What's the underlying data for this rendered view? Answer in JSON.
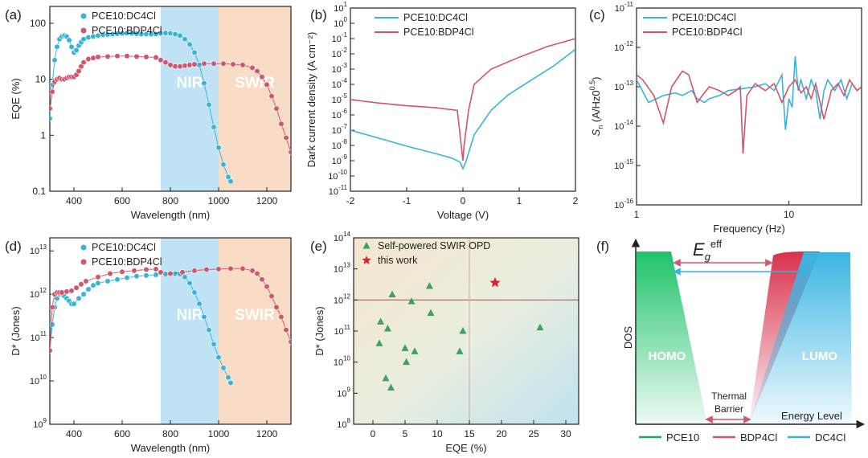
{
  "colors": {
    "dc4cl": "#3ab3d9",
    "bdp4cl": "#d0566d",
    "pce10": "#22a85a",
    "scatter": "#3fa25a",
    "star": "#d8232a",
    "nir_band": "#bfe3f4",
    "swir_band": "#f9dcc5"
  },
  "figure": {
    "panels": [
      {
        "id": "a",
        "label": "(a)",
        "type": "line",
        "yscale": "log",
        "xlabel": "Wavelength (nm)",
        "ylabel": "EQE (%)",
        "xlim": [
          300,
          1300
        ],
        "ylim": [
          0.1,
          200
        ],
        "xticks": [
          400,
          600,
          800,
          1000,
          1200
        ],
        "yticks": [
          {
            "v": 0.1,
            "t": "0.1"
          },
          {
            "v": 1,
            "t": "1"
          },
          {
            "v": 10,
            "t": "10"
          },
          {
            "v": 100,
            "t": "100"
          }
        ],
        "bands": [
          {
            "x0": 760,
            "x1": 1000,
            "label": "NIR",
            "color": "nir_band"
          },
          {
            "x0": 1000,
            "x1": 1300,
            "label": "SWIR",
            "color": "swir_band"
          }
        ],
        "legend": [
          "PCE10:DC4Cl",
          "PCE10:BDP4Cl"
        ],
        "series": [
          {
            "name": "PCE10:DC4Cl",
            "color": "dc4cl",
            "marker": "dot",
            "x": [
              300,
              310,
              320,
              330,
              340,
              350,
              360,
              370,
              380,
              390,
              400,
              410,
              420,
              430,
              440,
              460,
              480,
              500,
              520,
              540,
              560,
              580,
              600,
              620,
              640,
              660,
              680,
              700,
              720,
              740,
              760,
              780,
              800,
              820,
              840,
              860,
              880,
              900,
              920,
              940,
              960,
              980,
              1000,
              1020,
              1040,
              1050
            ],
            "y": [
              2,
              8,
              22,
              38,
              52,
              58,
              60,
              58,
              50,
              38,
              30,
              33,
              40,
              46,
              52,
              56,
              58,
              60,
              62,
              63,
              64,
              65,
              66,
              67,
              66,
              65,
              64,
              64,
              64,
              64,
              66,
              67,
              66,
              64,
              60,
              52,
              42,
              30,
              18,
              8.5,
              3.5,
              1.4,
              0.6,
              0.3,
              0.18,
              0.15
            ]
          },
          {
            "name": "PCE10:BDP4Cl",
            "color": "bdp4cl",
            "marker": "dot",
            "x": [
              300,
              310,
              320,
              330,
              340,
              350,
              360,
              370,
              380,
              390,
              400,
              410,
              420,
              430,
              440,
              460,
              480,
              500,
              540,
              580,
              620,
              660,
              700,
              740,
              760,
              780,
              800,
              820,
              840,
              860,
              880,
              900,
              940,
              980,
              1020,
              1060,
              1100,
              1140,
              1160,
              1180,
              1200,
              1220,
              1240,
              1260,
              1280,
              1300
            ],
            "y": [
              3,
              6,
              9,
              10,
              10.5,
              10,
              10,
              10.5,
              11,
              11,
              11,
              12,
              14,
              17,
              20,
              23,
              24,
              25,
              25.5,
              26,
              26,
              25.5,
              25,
              24.5,
              22,
              20,
              18,
              17,
              17,
              17.5,
              18,
              18.5,
              19,
              19,
              19,
              18.5,
              18,
              16,
              14,
              11,
              8,
              5,
              3,
              1.6,
              0.9,
              0.5
            ]
          }
        ]
      },
      {
        "id": "b",
        "label": "(b)",
        "type": "line",
        "yscale": "log",
        "xlabel": "Voltage (V)",
        "ylabel": "Dark current density (A cm⁻²)",
        "xlim": [
          -2,
          2
        ],
        "ylim": [
          1e-11,
          10
        ],
        "xticks": [
          -2,
          -1,
          0,
          1,
          2
        ],
        "yticks_exp": [
          -11,
          -10,
          -9,
          -8,
          -7,
          -6,
          -5,
          -4,
          -3,
          -2,
          -1,
          0,
          1
        ],
        "legend": [
          "PCE10:DC4Cl",
          "PCE10:BDP4Cl"
        ],
        "series": [
          {
            "name": "PCE10:DC4Cl",
            "color": "dc4cl",
            "marker": "none",
            "x": [
              -2,
              -1.5,
              -1,
              -0.5,
              -0.2,
              -0.05,
              0,
              0.05,
              0.2,
              0.5,
              0.8,
              1.0,
              1.3,
              1.6,
              2.0
            ],
            "y": [
              1e-07,
              3e-08,
              9e-09,
              3e-09,
              1.5e-09,
              8e-10,
              3e-10,
              8e-10,
              5e-08,
              2e-06,
              2e-05,
              6e-05,
              0.0003,
              0.0015,
              0.02
            ]
          },
          {
            "name": "PCE10:BDP4Cl",
            "color": "bdp4cl",
            "marker": "none",
            "x": [
              -2,
              -1.5,
              -1,
              -0.5,
              -0.1,
              0,
              0.02,
              0.1,
              0.2,
              0.5,
              1.0,
              1.5,
              2.0
            ],
            "y": [
              1e-05,
              6e-06,
              4e-06,
              3e-06,
              2e-06,
              1e-09,
              1e-08,
              2e-06,
              0.0001,
              0.001,
              0.006,
              0.03,
              0.1
            ]
          }
        ]
      },
      {
        "id": "c",
        "label": "(c)",
        "type": "line",
        "yscale": "log",
        "xscale": "log",
        "xlabel": "Frequency (Hz)",
        "ylabel": "Sn (A/Hz0.5)",
        "xlim": [
          1,
          30
        ],
        "ylim": [
          1e-16,
          1e-11
        ],
        "xticks": [
          {
            "v": 1,
            "t": "1"
          },
          {
            "v": 10,
            "t": "10"
          }
        ],
        "yticks_exp": [
          -16,
          -15,
          -14,
          -13,
          -12,
          -11
        ],
        "legend": [
          "PCE10:DC4Cl",
          "PCE10:BDP4Cl"
        ],
        "series": [
          {
            "name": "PCE10:DC4Cl",
            "color": "dc4cl",
            "marker": "none",
            "x": [
              1,
              1.2,
              1.5,
              1.8,
              2,
              2.3,
              2.5,
              2.8,
              3,
              3.5,
              4,
              5,
              6,
              7,
              8,
              9,
              9.5,
              10,
              10.5,
              11,
              11.5,
              12,
              13,
              14,
              15,
              16,
              17,
              18,
              20,
              22,
              24,
              26,
              28,
              30
            ],
            "y": [
              1.5e-13,
              4e-14,
              6e-14,
              7e-14,
              6e-14,
              8e-14,
              5e-14,
              4e-14,
              5e-14,
              6e-14,
              8e-14,
              9e-14,
              1e-13,
              1.2e-13,
              8e-14,
              2e-13,
              8e-15,
              5e-14,
              3e-14,
              6e-13,
              8e-14,
              1.5e-13,
              5e-14,
              1.5e-13,
              8e-14,
              1.5e-14,
              8e-14,
              1.5e-13,
              8e-14,
              1.5e-13,
              5e-14,
              1.2e-13,
              8e-14,
              1e-13
            ]
          },
          {
            "name": "PCE10:BDP4Cl",
            "color": "bdp4cl",
            "marker": "none",
            "x": [
              1,
              1.1,
              1.3,
              1.5,
              1.7,
              2,
              2.2,
              2.5,
              3,
              3.5,
              4,
              4.5,
              4.8,
              5,
              5.3,
              6,
              7,
              8,
              9,
              10,
              11,
              12,
              13,
              14,
              15,
              17,
              19,
              21,
              23,
              25,
              28,
              30
            ],
            "y": [
              2e-13,
              1.5e-13,
              6e-14,
              1.2e-14,
              1e-13,
              2.5e-13,
              2e-13,
              4e-14,
              1e-13,
              8e-14,
              6e-14,
              8e-14,
              1e-13,
              2e-15,
              6e-14,
              1.2e-13,
              8e-14,
              1.2e-13,
              4e-14,
              1e-13,
              1.5e-13,
              7e-14,
              1e-13,
              5e-14,
              1.2e-13,
              1.5e-14,
              8e-14,
              1.2e-13,
              6e-14,
              1.5e-13,
              8e-14,
              1e-13
            ]
          }
        ]
      },
      {
        "id": "d",
        "label": "(d)",
        "type": "line",
        "yscale": "log",
        "xlabel": "Wavelength (nm)",
        "ylabel": "D* (Jones)",
        "xlim": [
          300,
          1300
        ],
        "ylim": [
          1000000000.0,
          20000000000000.0
        ],
        "xticks": [
          400,
          600,
          800,
          1000,
          1200
        ],
        "yticks_exp": [
          9,
          10,
          11,
          12,
          13
        ],
        "bands": [
          {
            "x0": 760,
            "x1": 1000,
            "label": "NIR",
            "color": "nir_band"
          },
          {
            "x0": 1000,
            "x1": 1300,
            "label": "SWIR",
            "color": "swir_band"
          }
        ],
        "legend": [
          "PCE10:DC4Cl",
          "PCE10:BDP4Cl"
        ],
        "series": [
          {
            "name": "PCE10:DC4Cl",
            "color": "dc4cl",
            "marker": "dot",
            "x": [
              300,
              310,
              320,
              330,
              340,
              350,
              360,
              370,
              380,
              390,
              400,
              420,
              440,
              460,
              480,
              500,
              540,
              580,
              620,
              660,
              700,
              740,
              780,
              820,
              840,
              860,
              880,
              900,
              920,
              940,
              960,
              980,
              1000,
              1020,
              1040,
              1050
            ],
            "y": [
              50000000000.0,
              200000000000.0,
              500000000000.0,
              800000000000.0,
              1000000000000.0,
              1000000000000.0,
              900000000000.0,
              800000000000.0,
              700000000000.0,
              600000000000.0,
              600000000000.0,
              800000000000.0,
              1000000000000.0,
              1300000000000.0,
              1600000000000.0,
              1800000000000.0,
              2000000000000.0,
              2200000000000.0,
              2400000000000.0,
              2600000000000.0,
              2700000000000.0,
              2800000000000.0,
              2900000000000.0,
              3000000000000.0,
              2900000000000.0,
              2500000000000.0,
              1800000000000.0,
              1100000000000.0,
              600000000000.0,
              300000000000.0,
              150000000000.0,
              70000000000.0,
              35000000000.0,
              20000000000.0,
              12000000000.0,
              9000000000.0
            ]
          },
          {
            "name": "PCE10:BDP4Cl",
            "color": "bdp4cl",
            "marker": "dot",
            "x": [
              300,
              310,
              320,
              330,
              340,
              350,
              370,
              390,
              410,
              430,
              450,
              500,
              550,
              600,
              650,
              700,
              740,
              760,
              800,
              850,
              900,
              950,
              1000,
              1050,
              1100,
              1140,
              1160,
              1180,
              1200,
              1220,
              1240,
              1260,
              1280,
              1300
            ],
            "y": [
              50000000000.0,
              500000000000.0,
              1000000000000.0,
              1100000000000.0,
              1100000000000.0,
              1100000000000.0,
              1150000000000.0,
              1200000000000.0,
              1400000000000.0,
              1700000000000.0,
              2000000000000.0,
              2500000000000.0,
              3000000000000.0,
              3300000000000.0,
              3500000000000.0,
              3700000000000.0,
              3800000000000.0,
              3200000000000.0,
              3000000000000.0,
              3200000000000.0,
              3500000000000.0,
              3700000000000.0,
              3800000000000.0,
              3900000000000.0,
              3900000000000.0,
              3500000000000.0,
              3000000000000.0,
              2200000000000.0,
              1500000000000.0,
              900000000000.0,
              500000000000.0,
              300000000000.0,
              150000000000.0,
              80000000000.0
            ]
          }
        ]
      },
      {
        "id": "e",
        "label": "(e)",
        "type": "scatter",
        "yscale": "log",
        "xlabel": "EQE (%)",
        "ylabel": "D* (Jones)",
        "xlim": [
          -3,
          32
        ],
        "ylim": [
          100000000.0,
          100000000000000.0
        ],
        "xticks": [
          0,
          5,
          10,
          15,
          20,
          25,
          30
        ],
        "yticks_exp": [
          8,
          9,
          10,
          11,
          12,
          13,
          14
        ],
        "hline": 1000000000000.0,
        "vline": 15,
        "legend": [
          "Self-powered SWIR OPD",
          "this work"
        ],
        "series": [
          {
            "name": "Self-powered SWIR OPD",
            "color": "scatter",
            "marker": "triangle",
            "x": [
              1,
              1.2,
              2,
              2.3,
              2.8,
              3,
              5,
              5.2,
              6,
              6.5,
              8.8,
              9,
              13.5,
              14,
              26
            ],
            "y": [
              40000000000.0,
              200000000000.0,
              3000000000.0,
              120000000000.0,
              1500000000.0,
              1500000000000.0,
              28000000000.0,
              10000000000.0,
              900000000000.0,
              22000000000.0,
              2800000000000.0,
              380000000000.0,
              22000000000.0,
              100000000000.0,
              130000000000.0
            ]
          },
          {
            "name": "this work",
            "color": "star",
            "marker": "star",
            "x": [
              19
            ],
            "y": [
              3600000000000.0
            ]
          }
        ]
      }
    ],
    "diagram": {
      "label": "(f)",
      "energy_gap_symbol": "E",
      "energy_gap_subscript": "g",
      "energy_gap_superscript": "eff",
      "homo_label": "HOMO",
      "lumo_label": "LUMO",
      "ylabel": "DOS",
      "xlabel": "Energy Level",
      "barrier_line1": "Thermal",
      "barrier_line2": "Barrier",
      "legend": [
        {
          "name": "PCE10",
          "color": "pce10"
        },
        {
          "name": "BDP4Cl",
          "color": "bdp4cl"
        },
        {
          "name": "DC4Cl",
          "color": "dc4cl"
        }
      ]
    }
  }
}
